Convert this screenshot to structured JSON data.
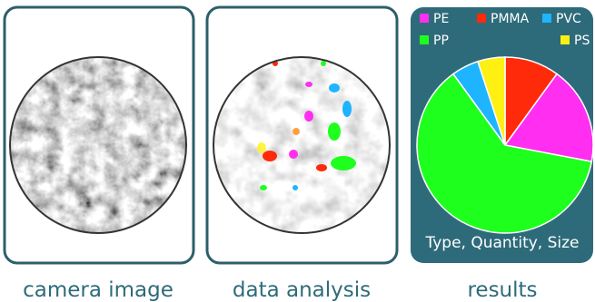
{
  "panels": [
    {
      "caption": "camera image"
    },
    {
      "caption": "data analysis"
    },
    {
      "caption": "results"
    }
  ],
  "chart_data": {
    "type": "pie",
    "title": "Type, Quantity, Size",
    "categories": [
      "PMMA",
      "PE",
      "PP",
      "PVC",
      "PS"
    ],
    "values": [
      10,
      18,
      62,
      5,
      5
    ],
    "colors": [
      "#ff2a0a",
      "#ff2ef0",
      "#1eff1e",
      "#1eb4ff",
      "#fff014"
    ],
    "legend_order": [
      1,
      0,
      3,
      2,
      4
    ]
  }
}
